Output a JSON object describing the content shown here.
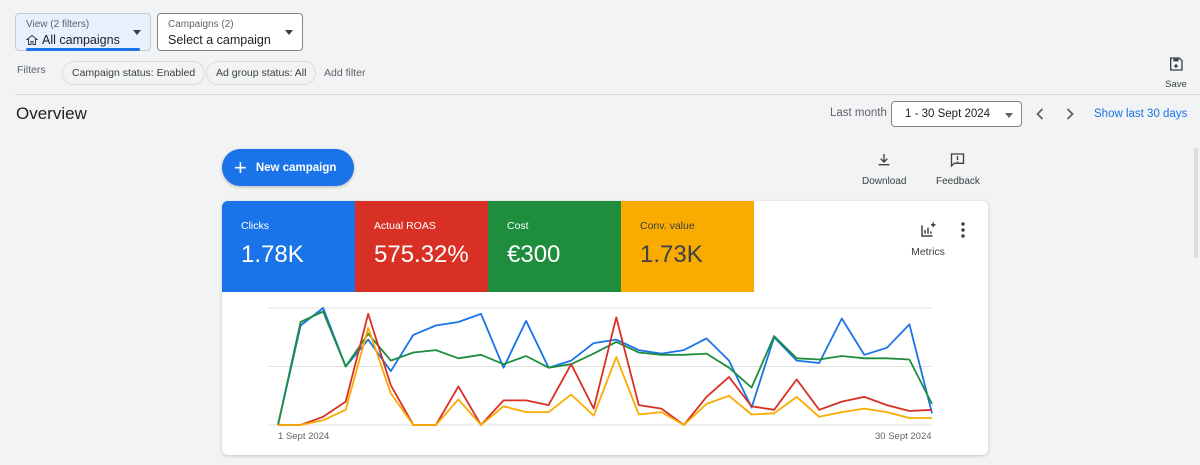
{
  "top": {
    "view_selector": {
      "small": "View (2 filters)",
      "label": "All campaigns"
    },
    "campaign_selector": {
      "small": "Campaigns (2)",
      "label": "Select a campaign"
    }
  },
  "filters": {
    "label": "Filters",
    "chips": [
      "Campaign status: Enabled",
      "Ad group status: All"
    ],
    "add_label": "Add filter"
  },
  "save_label": "Save",
  "overview": {
    "title": "Overview",
    "range_label": "Last month",
    "date_range": "1 - 30 Sept 2024",
    "show_last": "Show last 30 days"
  },
  "actions": {
    "new_campaign": "New campaign",
    "download": "Download",
    "feedback": "Feedback",
    "metrics": "Metrics"
  },
  "metrics": [
    {
      "name": "Clicks",
      "value": "1.78K",
      "color": "#1a73e8"
    },
    {
      "name": "Actual ROAS",
      "value": "575.32%",
      "color": "#d93025"
    },
    {
      "name": "Cost",
      "value": "€300",
      "color": "#1e8e3e"
    },
    {
      "name": "Conv. value",
      "value": "1.73K",
      "color": "#f9ab00"
    }
  ],
  "chart_data": {
    "type": "line",
    "x": [
      "1 Sept 2024",
      "2",
      "3",
      "4",
      "5",
      "6",
      "7",
      "8",
      "9",
      "10",
      "11",
      "12",
      "13",
      "14",
      "15",
      "16",
      "17",
      "18",
      "19",
      "20",
      "21",
      "22",
      "23",
      "24",
      "25",
      "26",
      "27",
      "28",
      "29",
      "30 Sept 2024"
    ],
    "x_tick_labels": [
      "1 Sept 2024",
      "30 Sept 2024"
    ],
    "ylim": [
      0,
      1
    ],
    "grid": true,
    "series": [
      {
        "color": "#1a73e8",
        "values": [
          0.0,
          0.85,
          1.0,
          0.5,
          0.73,
          0.46,
          0.77,
          0.85,
          0.88,
          0.95,
          0.49,
          0.89,
          0.49,
          0.55,
          0.7,
          0.73,
          0.64,
          0.61,
          0.64,
          0.74,
          0.55,
          0.15,
          0.75,
          0.55,
          0.53,
          0.91,
          0.6,
          0.66,
          0.86,
          0.1
        ]
      },
      {
        "color": "#1e8e3e",
        "values": [
          0.0,
          0.88,
          0.97,
          0.5,
          0.78,
          0.55,
          0.62,
          0.64,
          0.57,
          0.6,
          0.52,
          0.59,
          0.49,
          0.52,
          0.61,
          0.71,
          0.62,
          0.6,
          0.6,
          0.61,
          0.49,
          0.32,
          0.76,
          0.57,
          0.56,
          0.59,
          0.57,
          0.57,
          0.56,
          0.18
        ]
      },
      {
        "color": "#d93025",
        "values": [
          0.0,
          0.0,
          0.07,
          0.2,
          0.95,
          0.34,
          0.0,
          0.0,
          0.33,
          0.0,
          0.21,
          0.21,
          0.17,
          0.52,
          0.14,
          0.92,
          0.17,
          0.14,
          0.0,
          0.24,
          0.41,
          0.16,
          0.13,
          0.39,
          0.13,
          0.2,
          0.24,
          0.17,
          0.12,
          0.13
        ]
      },
      {
        "color": "#f9ab00",
        "values": [
          0.0,
          0.0,
          0.04,
          0.13,
          0.83,
          0.27,
          0.0,
          0.0,
          0.22,
          0.0,
          0.16,
          0.11,
          0.11,
          0.26,
          0.08,
          0.58,
          0.09,
          0.11,
          0.0,
          0.18,
          0.25,
          0.09,
          0.1,
          0.24,
          0.07,
          0.11,
          0.14,
          0.11,
          0.06,
          0.06
        ]
      }
    ]
  }
}
